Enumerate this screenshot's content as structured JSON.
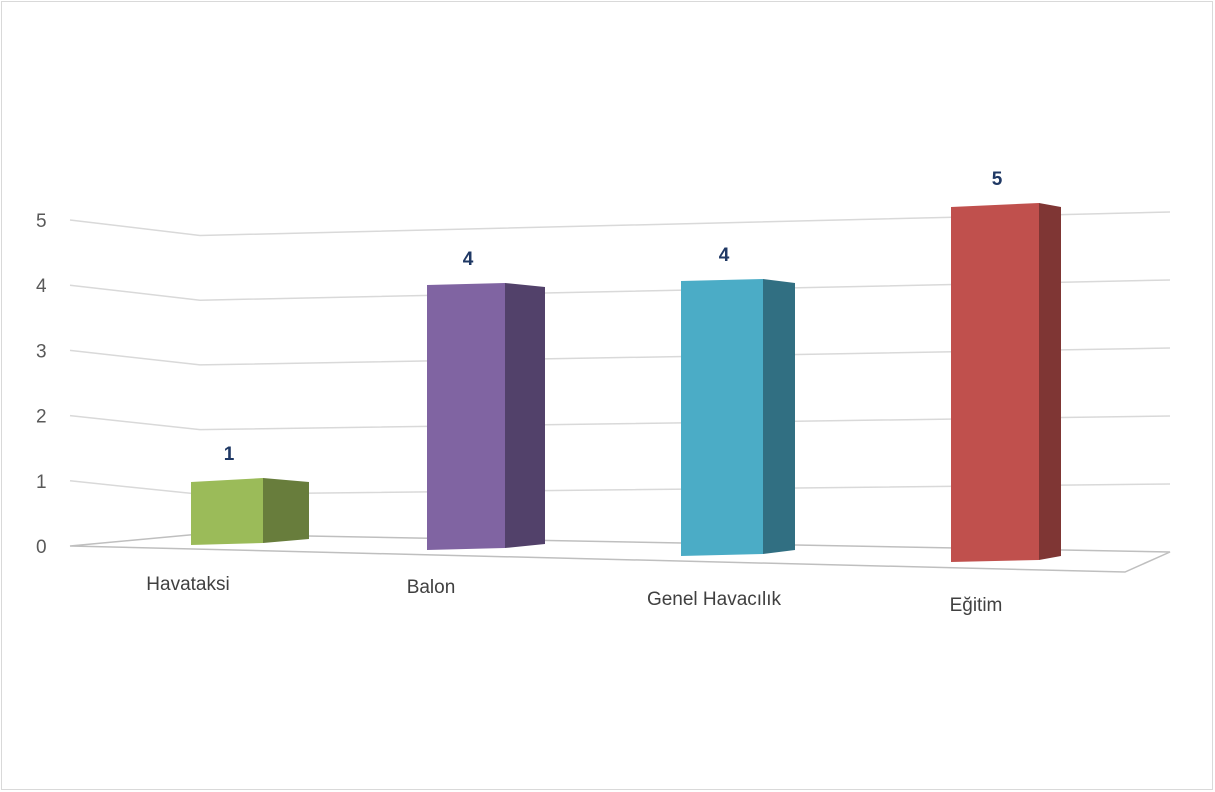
{
  "chart_data": {
    "type": "bar",
    "style": "3d-perspective",
    "categories": [
      "Havataksi",
      "Balon",
      "Genel Havacılık",
      "Eğitim"
    ],
    "values": [
      1,
      4,
      4,
      5
    ],
    "data_labels": [
      "1",
      "4",
      "4",
      "5"
    ],
    "y_ticks": [
      "0",
      "1",
      "2",
      "3",
      "4",
      "5"
    ],
    "ylim": [
      0,
      5
    ],
    "grid": true,
    "legend": "none",
    "colors": {
      "front": [
        "#9bbb59",
        "#8064a2",
        "#4bacc6",
        "#c0504d"
      ],
      "side": [
        "#687d3c",
        "#52416a",
        "#316f82",
        "#7f3634"
      ],
      "gridline": "#d9d9d9",
      "data_label": "#1f3864"
    }
  }
}
